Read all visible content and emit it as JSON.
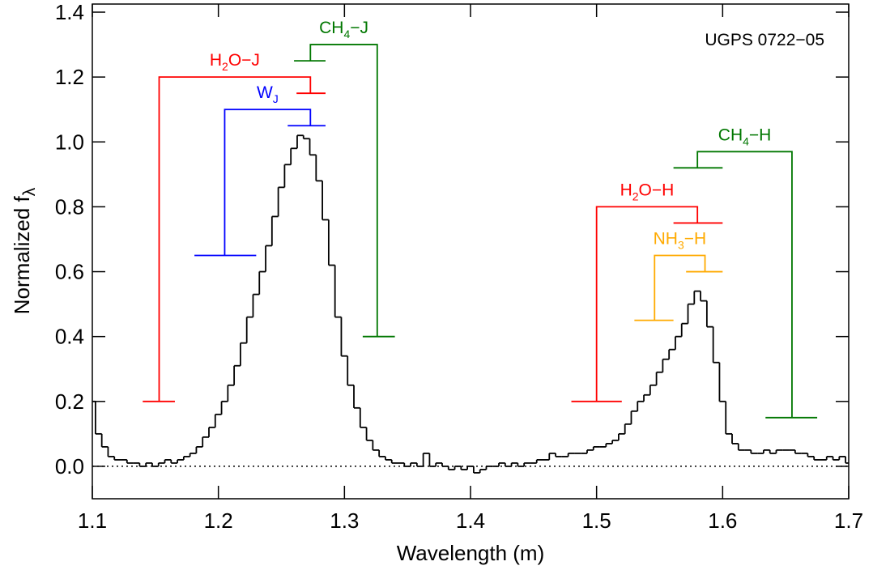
{
  "chart_data": {
    "type": "line",
    "step": true,
    "xlabel": "Wavelength (m)",
    "ylabel": [
      "Normalized f",
      "λ"
    ],
    "annotation": "UGPS 0722−05",
    "xlim": [
      1.1,
      1.7
    ],
    "ylim": [
      -0.1,
      1.425
    ],
    "xticks": [
      1.1,
      1.2,
      1.3,
      1.4,
      1.5,
      1.6,
      1.7
    ],
    "yticks": [
      {
        "value": 0,
        "label": "0.0"
      },
      0.2,
      0.4,
      0.6,
      0.8,
      {
        "value": 1,
        "label": "1.0"
      },
      1.2,
      1.4
    ],
    "zero_line": true,
    "x": [
      1.1,
      1.105,
      1.11,
      1.115,
      1.12,
      1.125,
      1.13,
      1.135,
      1.14,
      1.145,
      1.15,
      1.155,
      1.16,
      1.165,
      1.17,
      1.175,
      1.18,
      1.185,
      1.19,
      1.195,
      1.2,
      1.205,
      1.21,
      1.215,
      1.22,
      1.225,
      1.23,
      1.235,
      1.24,
      1.245,
      1.25,
      1.255,
      1.26,
      1.265,
      1.27,
      1.275,
      1.28,
      1.285,
      1.29,
      1.295,
      1.3,
      1.305,
      1.31,
      1.315,
      1.32,
      1.325,
      1.33,
      1.335,
      1.34,
      1.345,
      1.35,
      1.355,
      1.36,
      1.365,
      1.37,
      1.375,
      1.38,
      1.385,
      1.39,
      1.395,
      1.4,
      1.405,
      1.41,
      1.415,
      1.42,
      1.425,
      1.43,
      1.435,
      1.44,
      1.445,
      1.45,
      1.455,
      1.46,
      1.465,
      1.47,
      1.475,
      1.48,
      1.485,
      1.49,
      1.495,
      1.5,
      1.505,
      1.51,
      1.515,
      1.52,
      1.525,
      1.53,
      1.535,
      1.54,
      1.545,
      1.55,
      1.555,
      1.56,
      1.565,
      1.57,
      1.575,
      1.58,
      1.585,
      1.59,
      1.595,
      1.6,
      1.605,
      1.61,
      1.615,
      1.62,
      1.625,
      1.63,
      1.635,
      1.64,
      1.645,
      1.65,
      1.655,
      1.66,
      1.665,
      1.67,
      1.675,
      1.68,
      1.685,
      1.69,
      1.695,
      1.7
    ],
    "series": [
      {
        "color": "#000000",
        "values": [
          0.2,
          0.1,
          0.06,
          0.03,
          0.02,
          0.02,
          0.01,
          0.01,
          0.0,
          0.01,
          0.0,
          0.01,
          0.02,
          0.01,
          0.02,
          0.03,
          0.04,
          0.06,
          0.09,
          0.12,
          0.16,
          0.2,
          0.25,
          0.31,
          0.38,
          0.46,
          0.53,
          0.6,
          0.68,
          0.77,
          0.86,
          0.93,
          0.98,
          1.02,
          1.01,
          0.96,
          0.88,
          0.76,
          0.62,
          0.46,
          0.34,
          0.25,
          0.18,
          0.12,
          0.08,
          0.05,
          0.03,
          0.02,
          0.01,
          0.01,
          0.0,
          0.01,
          0.0,
          0.04,
          0.0,
          0.01,
          0.0,
          -0.01,
          0.0,
          -0.01,
          0.0,
          -0.02,
          -0.01,
          0.0,
          0.0,
          0.01,
          0.0,
          0.01,
          0.0,
          0.01,
          0.01,
          0.02,
          0.02,
          0.04,
          0.03,
          0.03,
          0.04,
          0.04,
          0.04,
          0.05,
          0.06,
          0.06,
          0.07,
          0.08,
          0.1,
          0.13,
          0.17,
          0.2,
          0.22,
          0.25,
          0.29,
          0.33,
          0.36,
          0.4,
          0.44,
          0.5,
          0.54,
          0.51,
          0.43,
          0.32,
          0.2,
          0.1,
          0.07,
          0.05,
          0.05,
          0.04,
          0.04,
          0.05,
          0.04,
          0.05,
          0.05,
          0.05,
          0.04,
          0.04,
          0.03,
          0.02,
          0.02,
          0.03,
          0.02,
          0.03,
          0.01
        ]
      }
    ],
    "indices": [
      {
        "label": [
          "H",
          "2",
          "O−J"
        ],
        "color": "#ff0000",
        "num": [
          1.262,
          1.285
        ],
        "num_y": 1.15,
        "stem_x": 1.273,
        "bracket_y": 1.2,
        "den_x": 1.153,
        "den": [
          1.14,
          1.1655
        ],
        "den_y": 0.2
      },
      {
        "label": [
          "W",
          "J"
        ],
        "color": "#0000ff",
        "num": [
          1.255,
          1.285
        ],
        "num_y": 1.05,
        "stem_x": 1.273,
        "bracket_y": 1.1,
        "den_x": 1.205,
        "den": [
          1.181,
          1.23
        ],
        "den_y": 0.65
      },
      {
        "label": [
          "CH",
          "4",
          "−J"
        ],
        "color": "#007700",
        "num": [
          1.26,
          1.285
        ],
        "num_y": 1.25,
        "stem_x": 1.273,
        "bracket_y": 1.3,
        "den_x": 1.326,
        "den": [
          1.3145,
          1.34
        ],
        "den_y": 0.4
      },
      {
        "label": [
          "CH",
          "4",
          "−H"
        ],
        "color": "#007700",
        "num": [
          1.561,
          1.6
        ],
        "num_y": 0.92,
        "stem_x": 1.58,
        "bracket_y": 0.97,
        "den_x": 1.655,
        "den": [
          1.634,
          1.675
        ],
        "den_y": 0.15
      },
      {
        "label": [
          "H",
          "2",
          "O−H"
        ],
        "color": "#ff0000",
        "num": [
          1.561,
          1.6
        ],
        "num_y": 0.75,
        "stem_x": 1.58,
        "bracket_y": 0.8,
        "den_x": 1.5,
        "den": [
          1.48,
          1.52
        ],
        "den_y": 0.2
      },
      {
        "label": [
          "NH",
          "3",
          "−H"
        ],
        "color": "#ffaa00",
        "num": [
          1.571,
          1.6
        ],
        "num_y": 0.6,
        "stem_x": 1.586,
        "bracket_y": 0.65,
        "den_x": 1.546,
        "den": [
          1.53,
          1.561
        ],
        "den_y": 0.45
      }
    ]
  }
}
